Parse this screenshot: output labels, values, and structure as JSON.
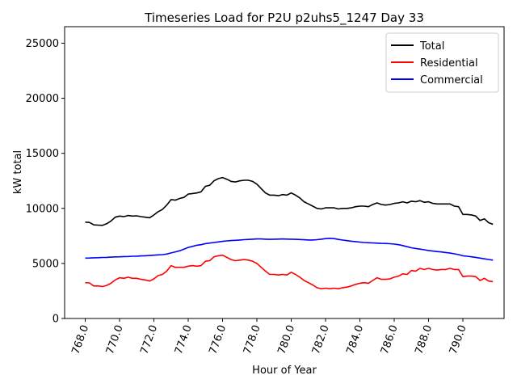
{
  "chart_data": {
    "type": "line",
    "title": "Timeseries Load for P2U p2uhs5_1247  Day 33",
    "xlabel": "Hour of Year",
    "ylabel": "kW total",
    "xlim": [
      766.8,
      792.4
    ],
    "ylim": [
      0,
      26500
    ],
    "x_ticks": [
      768.0,
      770.0,
      772.0,
      774.0,
      776.0,
      778.0,
      780.0,
      782.0,
      784.0,
      786.0,
      788.0,
      790.0
    ],
    "x_tick_labels": [
      "768.0",
      "770.0",
      "772.0",
      "774.0",
      "776.0",
      "778.0",
      "780.0",
      "782.0",
      "784.0",
      "786.0",
      "788.0",
      "790.0"
    ],
    "y_ticks": [
      0,
      5000,
      10000,
      15000,
      20000,
      25000
    ],
    "y_tick_labels": [
      "0",
      "5000",
      "10000",
      "15000",
      "20000",
      "25000"
    ],
    "legend_position": "top-right",
    "x": [
      768.0,
      768.25,
      768.5,
      768.75,
      769.0,
      769.25,
      769.5,
      769.75,
      770.0,
      770.25,
      770.5,
      770.75,
      771.0,
      771.25,
      771.5,
      771.75,
      772.0,
      772.25,
      772.5,
      772.75,
      773.0,
      773.25,
      773.5,
      773.75,
      774.0,
      774.25,
      774.5,
      774.75,
      775.0,
      775.25,
      775.5,
      775.75,
      776.0,
      776.25,
      776.5,
      776.75,
      777.0,
      777.25,
      777.5,
      777.75,
      778.0,
      778.25,
      778.5,
      778.75,
      779.0,
      779.25,
      779.5,
      779.75,
      780.0,
      780.25,
      780.5,
      780.75,
      781.0,
      781.25,
      781.5,
      781.75,
      782.0,
      782.25,
      782.5,
      782.75,
      783.0,
      783.25,
      783.5,
      783.75,
      784.0,
      784.25,
      784.5,
      784.75,
      785.0,
      785.25,
      785.5,
      785.75,
      786.0,
      786.25,
      786.5,
      786.75,
      787.0,
      787.25,
      787.5,
      787.75,
      788.0,
      788.25,
      788.5,
      788.75,
      789.0,
      789.25,
      789.5,
      789.75,
      790.0,
      790.25,
      790.5,
      790.75,
      791.0,
      791.25,
      791.5,
      791.75
    ],
    "series": [
      {
        "name": "Total",
        "color": "#000000",
        "values": [
          8750,
          8720,
          8500,
          8480,
          8460,
          8600,
          8850,
          9200,
          9300,
          9250,
          9350,
          9300,
          9320,
          9250,
          9200,
          9150,
          9400,
          9700,
          9900,
          10300,
          10800,
          10750,
          10900,
          11000,
          11300,
          11350,
          11400,
          11500,
          12000,
          12100,
          12500,
          12700,
          12800,
          12650,
          12450,
          12400,
          12500,
          12550,
          12550,
          12450,
          12200,
          11800,
          11400,
          11200,
          11200,
          11150,
          11250,
          11200,
          11400,
          11200,
          10950,
          10600,
          10400,
          10200,
          10000,
          9950,
          10050,
          10050,
          10050,
          9950,
          10000,
          10000,
          10050,
          10150,
          10200,
          10200,
          10150,
          10350,
          10500,
          10350,
          10300,
          10350,
          10450,
          10500,
          10600,
          10500,
          10650,
          10600,
          10700,
          10550,
          10600,
          10450,
          10400,
          10400,
          10400,
          10400,
          10200,
          10150,
          9450,
          9450,
          9400,
          9300,
          8900,
          9050,
          8700,
          8550
        ]
      },
      {
        "name": "Residential",
        "color": "#ff0000",
        "values": [
          3250,
          3230,
          2950,
          2960,
          2900,
          3000,
          3200,
          3500,
          3700,
          3650,
          3750,
          3650,
          3650,
          3550,
          3500,
          3400,
          3600,
          3900,
          4000,
          4300,
          4800,
          4650,
          4650,
          4650,
          4750,
          4800,
          4750,
          4800,
          5200,
          5250,
          5600,
          5700,
          5750,
          5550,
          5350,
          5250,
          5300,
          5350,
          5300,
          5200,
          5000,
          4650,
          4300,
          4000,
          4000,
          3950,
          4000,
          3950,
          4200,
          4000,
          3750,
          3450,
          3250,
          3050,
          2800,
          2700,
          2750,
          2700,
          2750,
          2700,
          2800,
          2850,
          2950,
          3100,
          3200,
          3250,
          3200,
          3450,
          3700,
          3550,
          3550,
          3600,
          3750,
          3850,
          4050,
          4000,
          4350,
          4300,
          4550,
          4450,
          4550,
          4450,
          4400,
          4450,
          4450,
          4550,
          4450,
          4450,
          3800,
          3850,
          3850,
          3800,
          3450,
          3650,
          3400,
          3350
        ]
      },
      {
        "name": "Commercial",
        "color": "#0000ff",
        "values": [
          5480,
          5490,
          5510,
          5520,
          5540,
          5550,
          5570,
          5590,
          5600,
          5620,
          5630,
          5650,
          5660,
          5680,
          5700,
          5720,
          5750,
          5780,
          5800,
          5850,
          5950,
          6050,
          6150,
          6300,
          6450,
          6550,
          6650,
          6700,
          6800,
          6850,
          6900,
          6950,
          7000,
          7050,
          7080,
          7100,
          7130,
          7160,
          7180,
          7200,
          7220,
          7220,
          7200,
          7190,
          7200,
          7210,
          7220,
          7210,
          7200,
          7190,
          7170,
          7150,
          7130,
          7130,
          7160,
          7200,
          7250,
          7280,
          7250,
          7180,
          7120,
          7070,
          7020,
          6980,
          6940,
          6900,
          6880,
          6860,
          6840,
          6820,
          6810,
          6790,
          6750,
          6700,
          6620,
          6520,
          6420,
          6360,
          6300,
          6240,
          6170,
          6120,
          6080,
          6040,
          5990,
          5940,
          5870,
          5800,
          5700,
          5650,
          5600,
          5550,
          5480,
          5420,
          5360,
          5300
        ]
      }
    ]
  }
}
